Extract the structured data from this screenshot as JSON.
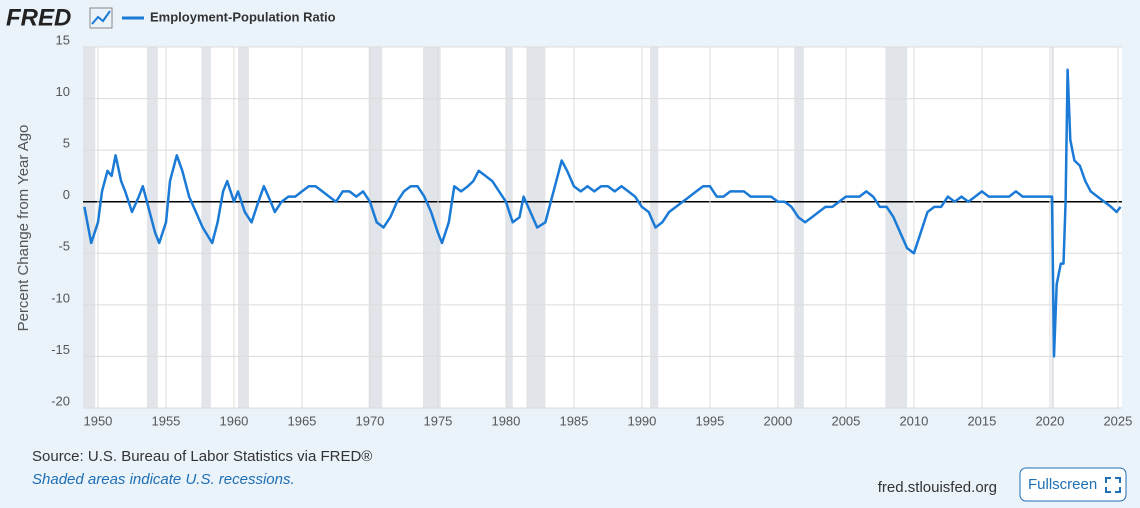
{
  "logo": "FRED",
  "chart_data": {
    "type": "line",
    "y_axis_label": "Percent Change from Year Ago",
    "xlim": [
      1948.9,
      2025.3
    ],
    "xticks": [
      1950,
      1955,
      1960,
      1965,
      1970,
      1975,
      1980,
      1985,
      1990,
      1995,
      2000,
      2005,
      2010,
      2015,
      2020,
      2025
    ],
    "ylim": [
      -20,
      15
    ],
    "yticks": [
      -20,
      -15,
      -10,
      -5,
      0,
      5,
      10,
      15
    ],
    "grid": true,
    "recessions": [
      [
        1948.9,
        1949.8
      ],
      [
        1953.6,
        1954.4
      ],
      [
        1957.6,
        1958.3
      ],
      [
        1960.3,
        1961.1
      ],
      [
        1969.9,
        1970.9
      ],
      [
        1973.9,
        1975.2
      ],
      [
        1980.0,
        1980.5
      ],
      [
        1981.5,
        1982.9
      ],
      [
        1990.6,
        1991.2
      ],
      [
        2001.2,
        2001.9
      ],
      [
        2007.9,
        2009.5
      ],
      [
        2020.1,
        2020.3
      ]
    ],
    "series": [
      {
        "name": "Employment-Population Ratio",
        "color": "#1a7ad6",
        "x": [
          1949.0,
          1949.5,
          1950,
          1950.3,
          1950.7,
          1951,
          1951.3,
          1951.7,
          1952,
          1952.5,
          1953,
          1953.3,
          1953.7,
          1954.2,
          1954.5,
          1955,
          1955.3,
          1955.8,
          1956.2,
          1956.7,
          1957.2,
          1957.7,
          1958.4,
          1958.8,
          1959.2,
          1959.5,
          1960,
          1960.3,
          1960.8,
          1961.3,
          1961.8,
          1962.2,
          1962.7,
          1963,
          1963.5,
          1964,
          1964.5,
          1965,
          1965.5,
          1966,
          1966.5,
          1967,
          1967.5,
          1968,
          1968.5,
          1969,
          1969.5,
          1970,
          1970.5,
          1971,
          1971.5,
          1972,
          1972.5,
          1973,
          1973.5,
          1974,
          1974.5,
          1975,
          1975.3,
          1975.8,
          1976.2,
          1976.7,
          1977.2,
          1977.6,
          1978,
          1978.5,
          1979,
          1979.5,
          1980,
          1980.5,
          1981,
          1981.3,
          1981.8,
          1982.3,
          1982.9,
          1983.3,
          1983.7,
          1984.1,
          1984.5,
          1985,
          1985.5,
          1986,
          1986.5,
          1987,
          1987.5,
          1988,
          1988.5,
          1989,
          1989.5,
          1990,
          1990.5,
          1991,
          1991.5,
          1992,
          1992.5,
          1993,
          1993.5,
          1994,
          1994.5,
          1995,
          1995.5,
          1996,
          1996.5,
          1997,
          1997.5,
          1998,
          1998.5,
          1999,
          1999.5,
          2000,
          2000.5,
          2001,
          2001.5,
          2002,
          2002.5,
          2003,
          2003.5,
          2004,
          2004.5,
          2005,
          2005.5,
          2006,
          2006.5,
          2007,
          2007.5,
          2008,
          2008.5,
          2009,
          2009.5,
          2010,
          2010.5,
          2011,
          2011.5,
          2012,
          2012.5,
          2013,
          2013.5,
          2014,
          2014.5,
          2015,
          2015.5,
          2016,
          2016.5,
          2017,
          2017.5,
          2018,
          2018.5,
          2019,
          2019.5,
          2020,
          2020.15,
          2020.3,
          2020.5,
          2020.8,
          2021.0,
          2021.15,
          2021.3,
          2021.5,
          2021.8,
          2022.2,
          2022.6,
          2023,
          2023.5,
          2024,
          2024.5,
          2024.9,
          2025.2
        ],
        "values": [
          -0.5,
          -4,
          -2,
          1,
          3,
          2.5,
          4.5,
          2,
          1,
          -1,
          0.5,
          1.5,
          -0.5,
          -3,
          -4,
          -2,
          2,
          4.5,
          3,
          0.5,
          -1,
          -2.5,
          -4,
          -2,
          1,
          2,
          0,
          1,
          -1,
          -2,
          0,
          1.5,
          0,
          -1,
          0,
          0.5,
          0.5,
          1,
          1.5,
          1.5,
          1,
          0.5,
          0,
          1,
          1,
          0.5,
          1,
          0,
          -2,
          -2.5,
          -1.5,
          0,
          1,
          1.5,
          1.5,
          0.5,
          -1,
          -3,
          -4,
          -2,
          1.5,
          1,
          1.5,
          2,
          3,
          2.5,
          2,
          1,
          0,
          -2,
          -1.5,
          0.5,
          -1,
          -2.5,
          -2,
          0,
          2,
          4,
          3,
          1.5,
          1,
          1.5,
          1,
          1.5,
          1.5,
          1,
          1.5,
          1,
          0.5,
          -0.5,
          -1,
          -2.5,
          -2,
          -1,
          -0.5,
          0,
          0.5,
          1,
          1.5,
          1.5,
          0.5,
          0.5,
          1,
          1,
          1,
          0.5,
          0.5,
          0.5,
          0.5,
          0,
          0,
          -0.5,
          -1.5,
          -2,
          -1.5,
          -1,
          -0.5,
          -0.5,
          0,
          0.5,
          0.5,
          0.5,
          1,
          0.5,
          -0.5,
          -0.5,
          -1.5,
          -3,
          -4.5,
          -5,
          -3,
          -1,
          -0.5,
          -0.5,
          0.5,
          0,
          0.5,
          0,
          0.5,
          1,
          0.5,
          0.5,
          0.5,
          0.5,
          1,
          0.5,
          0.5,
          0.5,
          0.5,
          0.5,
          0.5,
          -15,
          -8,
          -6,
          -6,
          0,
          12.8,
          6,
          4,
          3.5,
          2,
          1,
          0.5,
          0,
          -0.5,
          -1,
          -0.5
        ]
      }
    ],
    "source": "Source: U.S. Bureau of Labor Statistics via FRED®",
    "recession_note": "Shaded areas indicate U.S. recessions.",
    "site": "fred.stlouisfed.org",
    "button": "Fullscreen"
  }
}
